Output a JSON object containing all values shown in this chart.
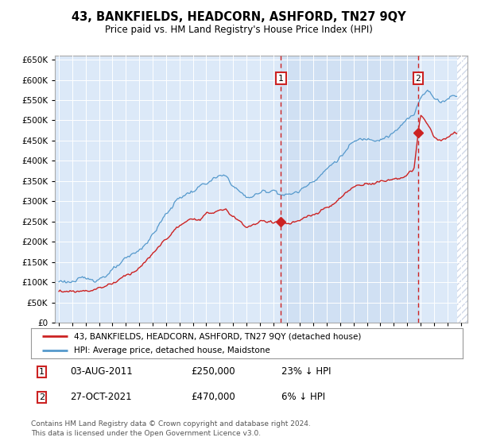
{
  "title": "43, BANKFIELDS, HEADCORN, ASHFORD, TN27 9QY",
  "subtitle": "Price paid vs. HM Land Registry's House Price Index (HPI)",
  "legend_line1": "43, BANKFIELDS, HEADCORN, ASHFORD, TN27 9QY (detached house)",
  "legend_line2": "HPI: Average price, detached house, Maidstone",
  "transaction1_date": "03-AUG-2011",
  "transaction1_price": 250000,
  "transaction1_pct": "23% ↓ HPI",
  "transaction1_year": 2011.58,
  "transaction2_date": "27-OCT-2021",
  "transaction2_price": 470000,
  "transaction2_pct": "6% ↓ HPI",
  "transaction2_year": 2021.82,
  "footnote1": "Contains HM Land Registry data © Crown copyright and database right 2024.",
  "footnote2": "This data is licensed under the Open Government Licence v3.0.",
  "plot_bg": "#dce9f8",
  "red_color": "#cc2222",
  "blue_color": "#5599cc",
  "shade_color": "#c8daf0",
  "hatch_color": "#d0d8e8",
  "ylim_min": 0,
  "ylim_max": 660000,
  "xlim_min": 1994.7,
  "xlim_max": 2025.5
}
